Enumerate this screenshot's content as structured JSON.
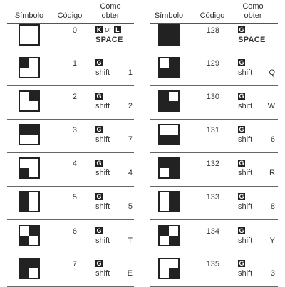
{
  "headers": {
    "symbol": "Símbolo",
    "code": "Código",
    "how_line1": "Como",
    "how_line2": "obter"
  },
  "left": [
    {
      "code": "0",
      "key1": "K",
      "or_label": "or",
      "key2": "L",
      "action": "SPACE",
      "pattern": [
        0,
        0,
        0,
        0
      ]
    },
    {
      "code": "1",
      "key": "G",
      "action": "shift",
      "char": "1",
      "pattern": [
        1,
        0,
        0,
        0
      ]
    },
    {
      "code": "2",
      "key": "G",
      "action": "shift",
      "char": "2",
      "pattern": [
        0,
        1,
        0,
        0
      ]
    },
    {
      "code": "3",
      "key": "G",
      "action": "shift",
      "char": "7",
      "pattern": [
        1,
        1,
        0,
        0
      ]
    },
    {
      "code": "4",
      "key": "G",
      "action": "shift",
      "char": "4",
      "pattern": [
        0,
        0,
        1,
        0
      ]
    },
    {
      "code": "5",
      "key": "G",
      "action": "shift",
      "char": "5",
      "pattern": [
        1,
        0,
        1,
        0
      ]
    },
    {
      "code": "6",
      "key": "G",
      "action": "shift",
      "char": "T",
      "pattern": [
        0,
        1,
        1,
        0
      ]
    },
    {
      "code": "7",
      "key": "G",
      "action": "shift",
      "char": "E",
      "pattern": [
        1,
        1,
        1,
        0
      ]
    }
  ],
  "right": [
    {
      "code": "128",
      "key": "G",
      "action": "SPACE",
      "pattern": [
        1,
        1,
        1,
        1
      ]
    },
    {
      "code": "129",
      "key": "G",
      "action": "shift",
      "char": "Q",
      "pattern": [
        0,
        1,
        1,
        1
      ]
    },
    {
      "code": "130",
      "key": "G",
      "action": "shift",
      "char": "W",
      "pattern": [
        1,
        0,
        1,
        1
      ]
    },
    {
      "code": "131",
      "key": "G",
      "action": "shift",
      "char": "6",
      "pattern": [
        0,
        0,
        1,
        1
      ]
    },
    {
      "code": "132",
      "key": "G",
      "action": "shift",
      "char": "R",
      "pattern": [
        1,
        1,
        0,
        1
      ]
    },
    {
      "code": "133",
      "key": "G",
      "action": "shift",
      "char": "8",
      "pattern": [
        0,
        1,
        0,
        1
      ]
    },
    {
      "code": "134",
      "key": "G",
      "action": "shift",
      "char": "Y",
      "pattern": [
        1,
        0,
        0,
        1
      ]
    },
    {
      "code": "135",
      "key": "G",
      "action": "shift",
      "char": "3",
      "pattern": [
        0,
        0,
        0,
        1
      ]
    }
  ],
  "colors": {
    "ink": "#222222",
    "paper": "#ffffff"
  }
}
